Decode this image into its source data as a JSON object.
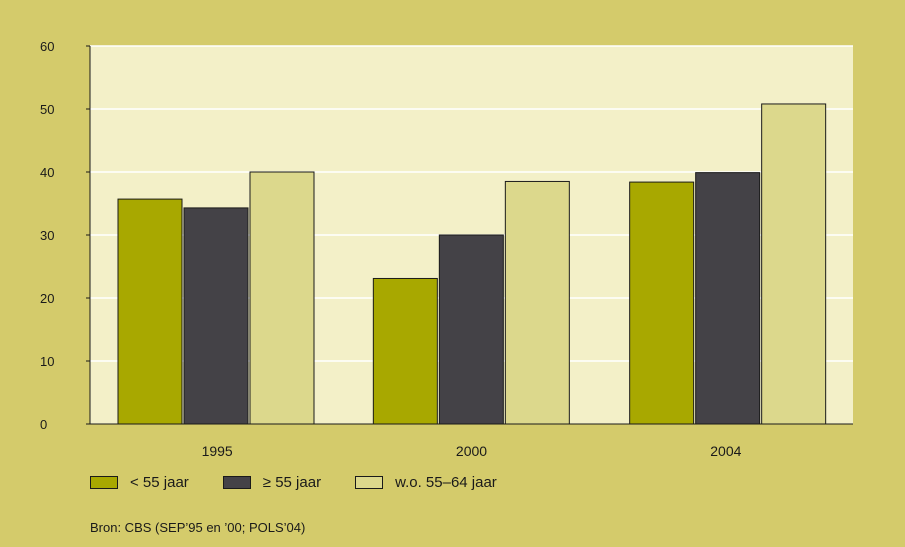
{
  "chart_data": {
    "type": "bar",
    "categories": [
      "1995",
      "2000",
      "2004"
    ],
    "series": [
      {
        "name": "< 55 jaar",
        "values": [
          35.7,
          23.1,
          38.4
        ],
        "color": "#a8a800"
      },
      {
        "name": "≥ 55 jaar",
        "values": [
          34.3,
          30.0,
          39.9
        ],
        "color": "#444247"
      },
      {
        "name": "w.o. 55–64 jaar",
        "values": [
          40.0,
          38.5,
          50.8
        ],
        "color": "#dcd88c"
      }
    ],
    "ylim": [
      0,
      60
    ],
    "yticks": [
      "0",
      "10",
      "20",
      "30",
      "40",
      "50",
      "60"
    ],
    "grid": true,
    "legend_position": "bottom-left",
    "plot_background": "#f3f0c8",
    "gridline_color": "#ffffff"
  },
  "source": "Bron:  CBS (SEP’95 en ’00; POLS’04)"
}
